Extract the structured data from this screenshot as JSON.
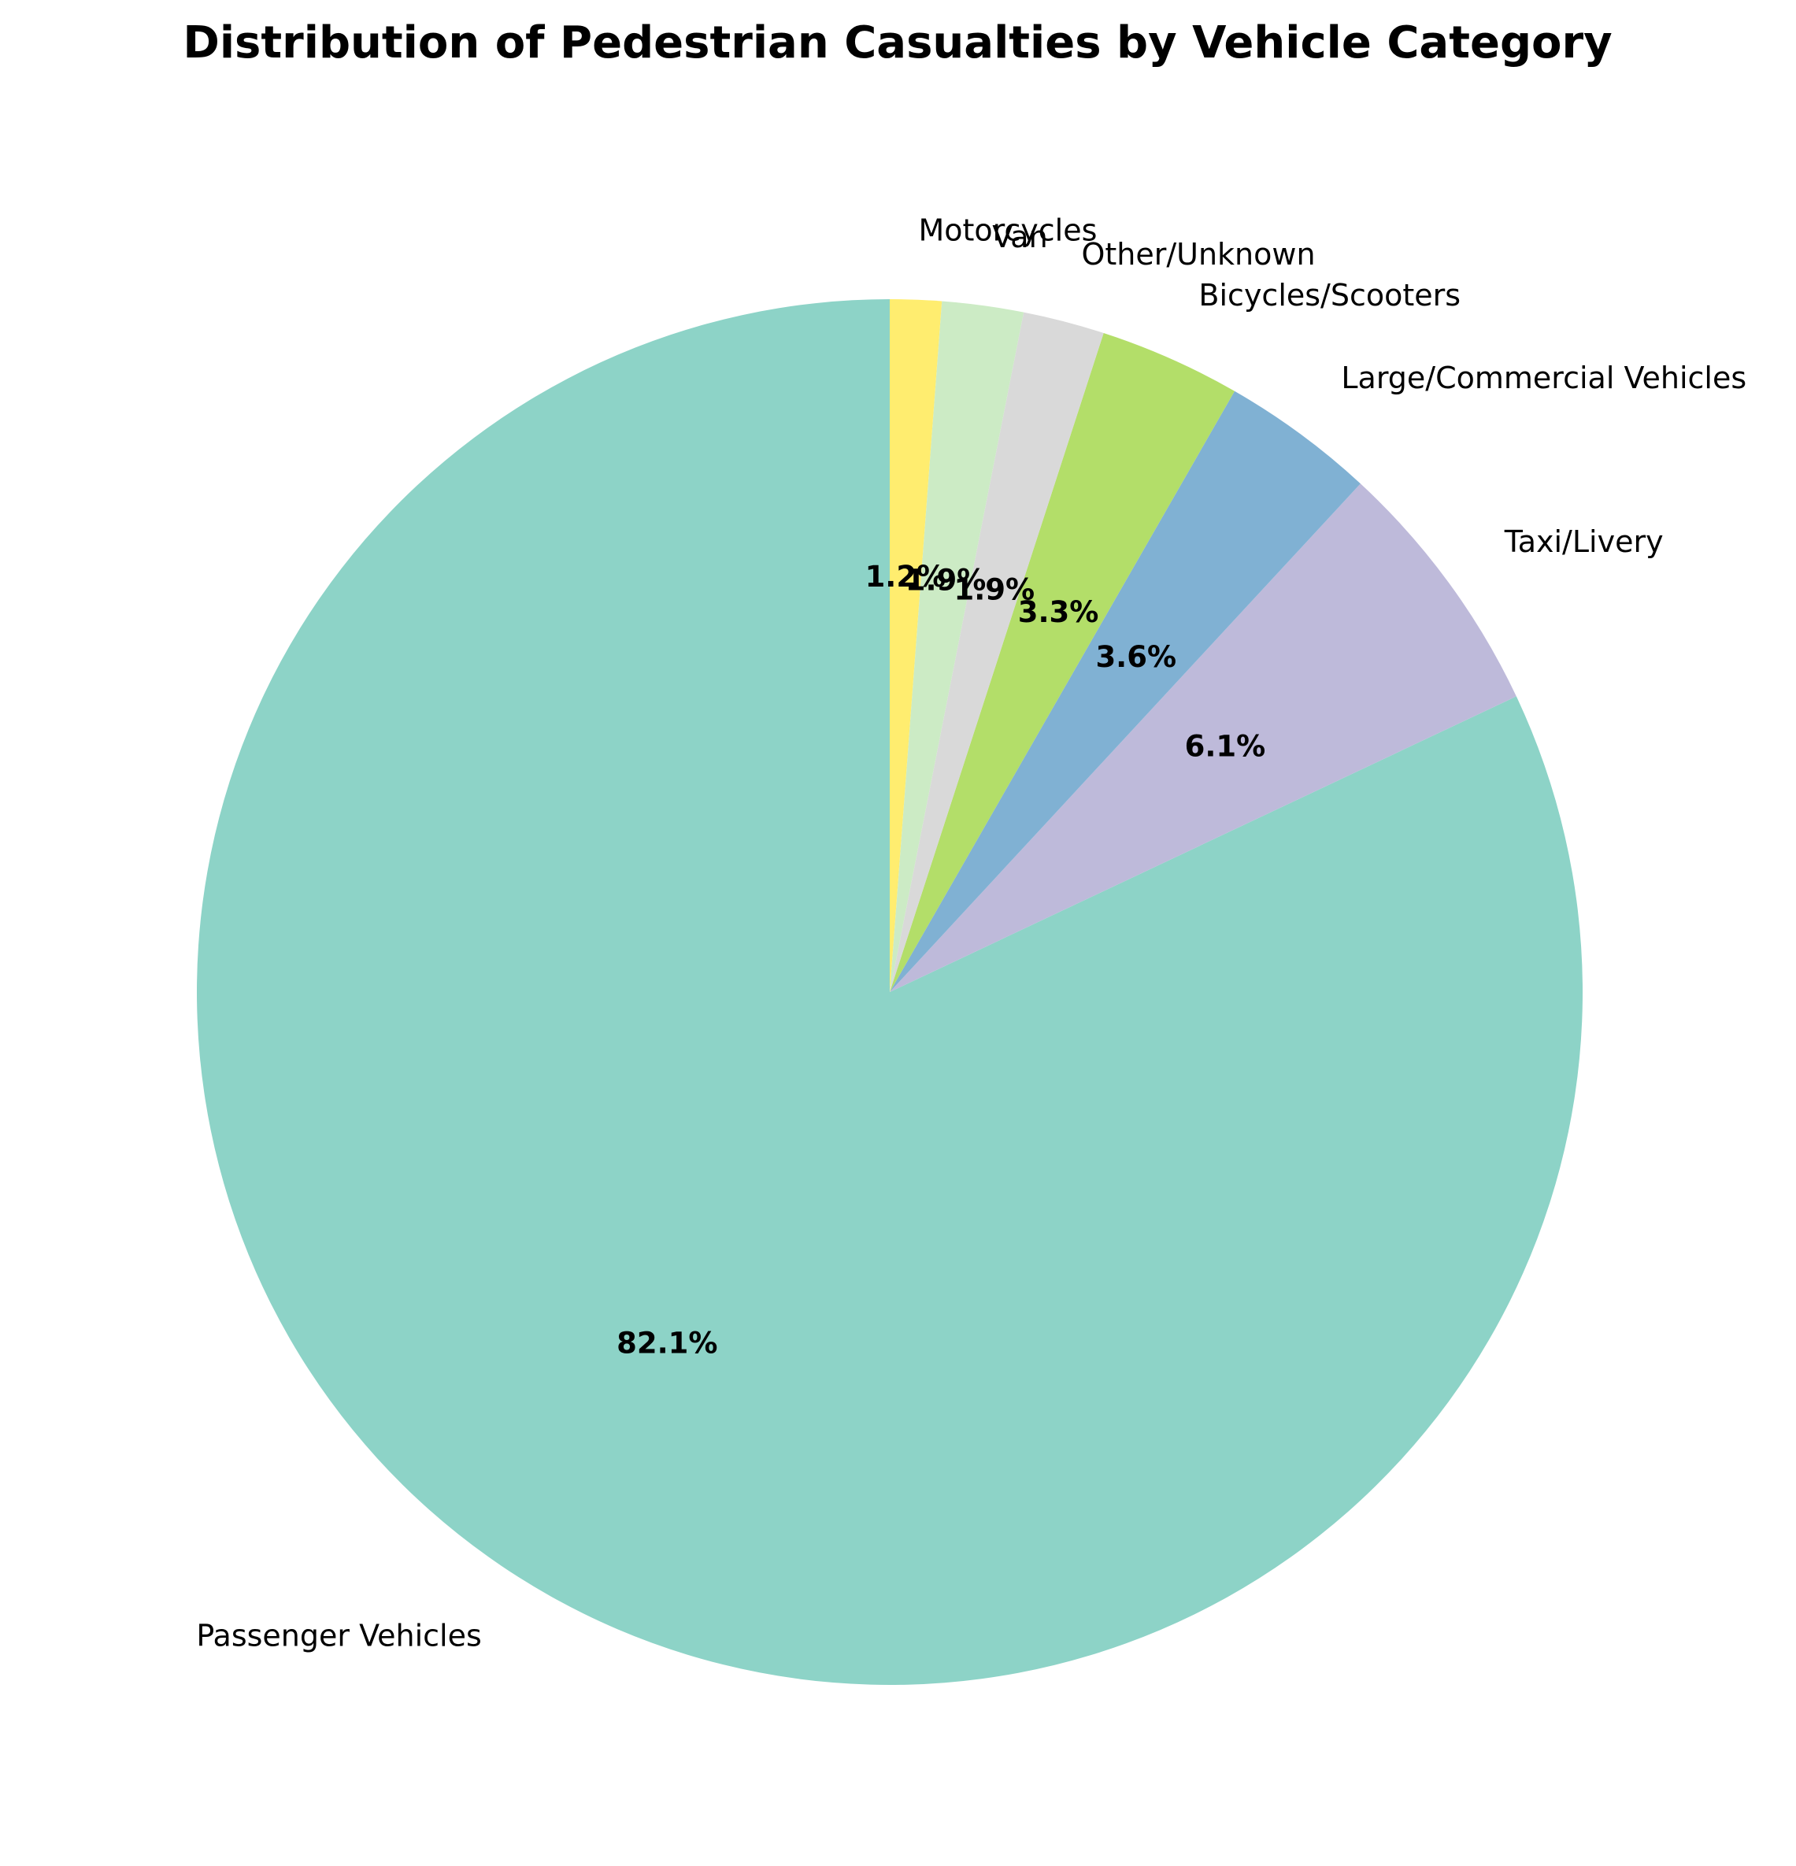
{
  "chart_data": {
    "type": "pie",
    "title": "Distribution of Pedestrian Casualties by Vehicle Category",
    "start_angle_deg": 90,
    "direction": "counterclockwise",
    "slices": [
      {
        "label": "Passenger Vehicles",
        "value": 82.1,
        "pct_label": "82.1%",
        "color": "#8dd3c7"
      },
      {
        "label": "Taxi/Livery",
        "value": 6.1,
        "pct_label": "6.1%",
        "color": "#bebada"
      },
      {
        "label": "Large/Commercial Vehicles",
        "value": 3.6,
        "pct_label": "3.6%",
        "color": "#80b1d3"
      },
      {
        "label": "Bicycles/Scooters",
        "value": 3.3,
        "pct_label": "3.3%",
        "color": "#b3de69"
      },
      {
        "label": "Other/Unknown",
        "value": 1.9,
        "pct_label": "1.9%",
        "color": "#d9d9d9"
      },
      {
        "label": "Van",
        "value": 1.9,
        "pct_label": "1.9%",
        "color": "#ccebc5"
      },
      {
        "label": "Motorcycles",
        "value": 1.2,
        "pct_label": "1.2%",
        "color": "#ffed6f"
      }
    ]
  }
}
